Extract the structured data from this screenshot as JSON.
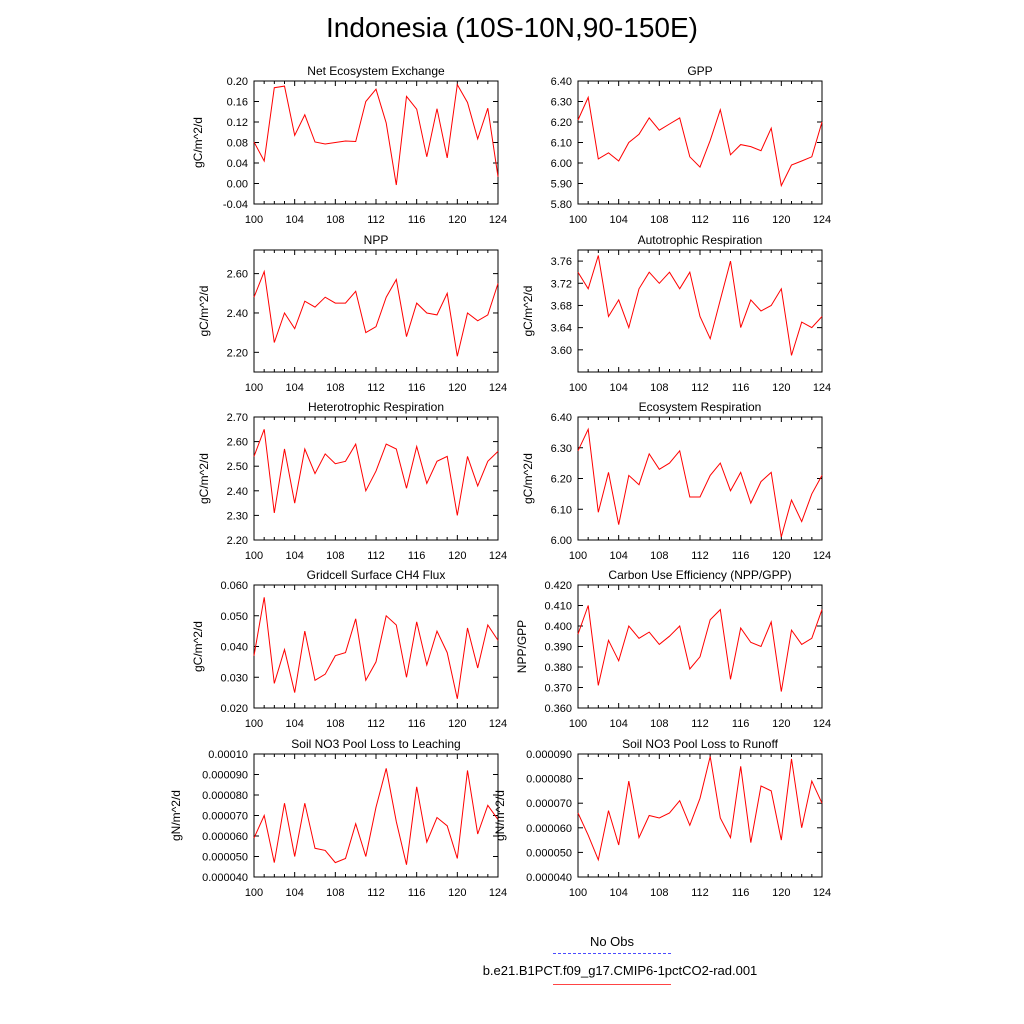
{
  "page": {
    "title": "Indonesia (10S-10N,90-150E)"
  },
  "legend": {
    "obs_label": "No Obs",
    "obs_color": "#4b4bff",
    "model_label": "b.e21.B1PCT.f09_g17.CMIP6-1pctCO2-rad.001",
    "model_color": "#ff0000"
  },
  "chart_data": [
    {
      "type": "line",
      "title": "Net Ecosystem Exchange",
      "ylabel": "gC/m^2/d",
      "ylim": [
        -0.04,
        0.2
      ],
      "yticks": [
        "-0.04",
        "0.00",
        "0.04",
        "0.08",
        "0.12",
        "0.16",
        "0.20"
      ],
      "xlim": [
        100,
        124
      ],
      "xticks": [
        "100",
        "104",
        "108",
        "112",
        "116",
        "120",
        "124"
      ],
      "x": [
        100,
        101,
        102,
        103,
        104,
        105,
        106,
        107,
        108,
        109,
        110,
        111,
        112,
        113,
        114,
        115,
        116,
        117,
        118,
        119,
        120,
        121,
        122,
        123,
        124
      ],
      "series": [
        {
          "values": [
            0.081,
            0.044,
            0.187,
            0.19,
            0.094,
            0.134,
            0.081,
            0.077,
            0.08,
            0.083,
            0.082,
            0.16,
            0.184,
            0.118,
            -0.003,
            0.17,
            0.145,
            0.052,
            0.146,
            0.05,
            0.193,
            0.158,
            0.087,
            0.147,
            0.013
          ]
        }
      ]
    },
    {
      "type": "line",
      "title": "GPP",
      "ylabel": "",
      "ylim": [
        5.8,
        6.4
      ],
      "yticks": [
        "5.80",
        "5.90",
        "6.00",
        "6.10",
        "6.20",
        "6.30",
        "6.40"
      ],
      "xlim": [
        100,
        124
      ],
      "xticks": [
        "100",
        "104",
        "108",
        "112",
        "116",
        "120",
        "124"
      ],
      "x": [
        100,
        101,
        102,
        103,
        104,
        105,
        106,
        107,
        108,
        109,
        110,
        111,
        112,
        113,
        114,
        115,
        116,
        117,
        118,
        119,
        120,
        121,
        122,
        123,
        124
      ],
      "series": [
        {
          "values": [
            6.21,
            6.32,
            6.02,
            6.05,
            6.01,
            6.1,
            6.14,
            6.22,
            6.16,
            6.19,
            6.22,
            6.03,
            5.98,
            6.11,
            6.26,
            6.04,
            6.09,
            6.08,
            6.06,
            6.17,
            5.89,
            5.99,
            6.01,
            6.03,
            6.2
          ]
        }
      ]
    },
    {
      "type": "line",
      "title": "NPP",
      "ylabel": "gC/m^2/d",
      "ylim": [
        2.1,
        2.72
      ],
      "yticks": [
        "2.20",
        "2.40",
        "2.60"
      ],
      "xlim": [
        100,
        124
      ],
      "xticks": [
        "100",
        "104",
        "108",
        "112",
        "116",
        "120",
        "124"
      ],
      "x": [
        100,
        101,
        102,
        103,
        104,
        105,
        106,
        107,
        108,
        109,
        110,
        111,
        112,
        113,
        114,
        115,
        116,
        117,
        118,
        119,
        120,
        121,
        122,
        123,
        124
      ],
      "series": [
        {
          "values": [
            2.48,
            2.61,
            2.25,
            2.4,
            2.32,
            2.46,
            2.43,
            2.48,
            2.45,
            2.45,
            2.51,
            2.3,
            2.33,
            2.48,
            2.57,
            2.28,
            2.45,
            2.4,
            2.39,
            2.5,
            2.18,
            2.4,
            2.36,
            2.39,
            2.55
          ]
        }
      ]
    },
    {
      "type": "line",
      "title": "Autotrophic Respiration",
      "ylabel": "gC/m^2/d",
      "ylim": [
        3.56,
        3.78
      ],
      "yticks": [
        "3.60",
        "3.64",
        "3.68",
        "3.72",
        "3.76"
      ],
      "xlim": [
        100,
        124
      ],
      "xticks": [
        "100",
        "104",
        "108",
        "112",
        "116",
        "120",
        "124"
      ],
      "x": [
        100,
        101,
        102,
        103,
        104,
        105,
        106,
        107,
        108,
        109,
        110,
        111,
        112,
        113,
        114,
        115,
        116,
        117,
        118,
        119,
        120,
        121,
        122,
        123,
        124
      ],
      "series": [
        {
          "values": [
            3.74,
            3.71,
            3.77,
            3.66,
            3.69,
            3.64,
            3.71,
            3.74,
            3.72,
            3.74,
            3.71,
            3.74,
            3.66,
            3.62,
            3.69,
            3.76,
            3.64,
            3.69,
            3.67,
            3.68,
            3.71,
            3.59,
            3.65,
            3.64,
            3.66
          ]
        }
      ]
    },
    {
      "type": "line",
      "title": "Heterotrophic Respiration",
      "ylabel": "gC/m^2/d",
      "ylim": [
        2.2,
        2.7
      ],
      "yticks": [
        "2.20",
        "2.30",
        "2.40",
        "2.50",
        "2.60",
        "2.70"
      ],
      "xlim": [
        100,
        124
      ],
      "xticks": [
        "100",
        "104",
        "108",
        "112",
        "116",
        "120",
        "124"
      ],
      "x": [
        100,
        101,
        102,
        103,
        104,
        105,
        106,
        107,
        108,
        109,
        110,
        111,
        112,
        113,
        114,
        115,
        116,
        117,
        118,
        119,
        120,
        121,
        122,
        123,
        124
      ],
      "series": [
        {
          "values": [
            2.54,
            2.65,
            2.31,
            2.57,
            2.35,
            2.57,
            2.47,
            2.55,
            2.51,
            2.52,
            2.59,
            2.4,
            2.48,
            2.59,
            2.57,
            2.41,
            2.58,
            2.43,
            2.52,
            2.54,
            2.3,
            2.54,
            2.42,
            2.52,
            2.56
          ]
        }
      ]
    },
    {
      "type": "line",
      "title": "Ecosystem Respiration",
      "ylabel": "gC/m^2/d",
      "ylim": [
        6.0,
        6.4
      ],
      "yticks": [
        "6.00",
        "6.10",
        "6.20",
        "6.30",
        "6.40"
      ],
      "xlim": [
        100,
        124
      ],
      "xticks": [
        "100",
        "104",
        "108",
        "112",
        "116",
        "120",
        "124"
      ],
      "x": [
        100,
        101,
        102,
        103,
        104,
        105,
        106,
        107,
        108,
        109,
        110,
        111,
        112,
        113,
        114,
        115,
        116,
        117,
        118,
        119,
        120,
        121,
        122,
        123,
        124
      ],
      "series": [
        {
          "values": [
            6.29,
            6.36,
            6.09,
            6.22,
            6.05,
            6.21,
            6.18,
            6.28,
            6.23,
            6.25,
            6.29,
            6.14,
            6.14,
            6.21,
            6.25,
            6.16,
            6.22,
            6.12,
            6.19,
            6.22,
            6.01,
            6.13,
            6.06,
            6.15,
            6.21
          ]
        }
      ]
    },
    {
      "type": "line",
      "title": "Gridcell Surface CH4 Flux",
      "ylabel": "gC/m^2/d",
      "ylim": [
        0.02,
        0.06
      ],
      "yticks": [
        "0.020",
        "0.030",
        "0.040",
        "0.050",
        "0.060"
      ],
      "xlim": [
        100,
        124
      ],
      "xticks": [
        "100",
        "104",
        "108",
        "112",
        "116",
        "120",
        "124"
      ],
      "x": [
        100,
        101,
        102,
        103,
        104,
        105,
        106,
        107,
        108,
        109,
        110,
        111,
        112,
        113,
        114,
        115,
        116,
        117,
        118,
        119,
        120,
        121,
        122,
        123,
        124
      ],
      "series": [
        {
          "values": [
            0.037,
            0.056,
            0.028,
            0.039,
            0.025,
            0.045,
            0.029,
            0.031,
            0.037,
            0.038,
            0.049,
            0.029,
            0.035,
            0.05,
            0.047,
            0.03,
            0.048,
            0.034,
            0.045,
            0.038,
            0.023,
            0.046,
            0.033,
            0.047,
            0.042
          ]
        }
      ]
    },
    {
      "type": "line",
      "title": "Carbon Use Efficiency (NPP/GPP)",
      "ylabel": "NPP/GPP",
      "ylim": [
        0.36,
        0.42
      ],
      "yticks": [
        "0.360",
        "0.370",
        "0.380",
        "0.390",
        "0.400",
        "0.410",
        "0.420"
      ],
      "xlim": [
        100,
        124
      ],
      "xticks": [
        "100",
        "104",
        "108",
        "112",
        "116",
        "120",
        "124"
      ],
      "x": [
        100,
        101,
        102,
        103,
        104,
        105,
        106,
        107,
        108,
        109,
        110,
        111,
        112,
        113,
        114,
        115,
        116,
        117,
        118,
        119,
        120,
        121,
        122,
        123,
        124
      ],
      "series": [
        {
          "values": [
            0.396,
            0.41,
            0.371,
            0.393,
            0.383,
            0.4,
            0.394,
            0.397,
            0.391,
            0.395,
            0.4,
            0.379,
            0.385,
            0.403,
            0.408,
            0.374,
            0.399,
            0.392,
            0.39,
            0.402,
            0.368,
            0.398,
            0.391,
            0.394,
            0.408
          ]
        }
      ]
    },
    {
      "type": "line",
      "title": "Soil NO3 Pool Loss to Leaching",
      "ylabel": "gN/m^2/d",
      "ylim": [
        4e-05,
        0.0001
      ],
      "yticks": [
        "0.000040",
        "0.000050",
        "0.000060",
        "0.000070",
        "0.000080",
        "0.000090",
        "0.00010"
      ],
      "xlim": [
        100,
        124
      ],
      "xticks": [
        "100",
        "104",
        "108",
        "112",
        "116",
        "120",
        "124"
      ],
      "x": [
        100,
        101,
        102,
        103,
        104,
        105,
        106,
        107,
        108,
        109,
        110,
        111,
        112,
        113,
        114,
        115,
        116,
        117,
        118,
        119,
        120,
        121,
        122,
        123,
        124
      ],
      "series": [
        {
          "values": [
            5.9e-05,
            7e-05,
            4.7e-05,
            7.6e-05,
            5e-05,
            7.6e-05,
            5.4e-05,
            5.3e-05,
            4.7e-05,
            4.9e-05,
            6.6e-05,
            5e-05,
            7.4e-05,
            9.3e-05,
            6.7e-05,
            4.6e-05,
            8.4e-05,
            5.7e-05,
            6.9e-05,
            6.5e-05,
            4.9e-05,
            9.2e-05,
            6.1e-05,
            7.5e-05,
            6.8e-05
          ]
        }
      ]
    },
    {
      "type": "line",
      "title": "Soil NO3 Pool Loss to Runoff",
      "ylabel": "gN/m^2/d",
      "ylim": [
        4e-05,
        9e-05
      ],
      "yticks": [
        "0.000040",
        "0.000050",
        "0.000060",
        "0.000070",
        "0.000080",
        "0.000090"
      ],
      "xlim": [
        100,
        124
      ],
      "xticks": [
        "100",
        "104",
        "108",
        "112",
        "116",
        "120",
        "124"
      ],
      "x": [
        100,
        101,
        102,
        103,
        104,
        105,
        106,
        107,
        108,
        109,
        110,
        111,
        112,
        113,
        114,
        115,
        116,
        117,
        118,
        119,
        120,
        121,
        122,
        123,
        124
      ],
      "series": [
        {
          "values": [
            6.6e-05,
            5.7e-05,
            4.7e-05,
            6.7e-05,
            5.3e-05,
            7.9e-05,
            5.6e-05,
            6.5e-05,
            6.4e-05,
            6.6e-05,
            7.1e-05,
            6.1e-05,
            7.2e-05,
            8.9e-05,
            6.4e-05,
            5.6e-05,
            8.5e-05,
            5.4e-05,
            7.7e-05,
            7.5e-05,
            5.5e-05,
            8.8e-05,
            6e-05,
            7.9e-05,
            7e-05
          ]
        }
      ]
    }
  ]
}
